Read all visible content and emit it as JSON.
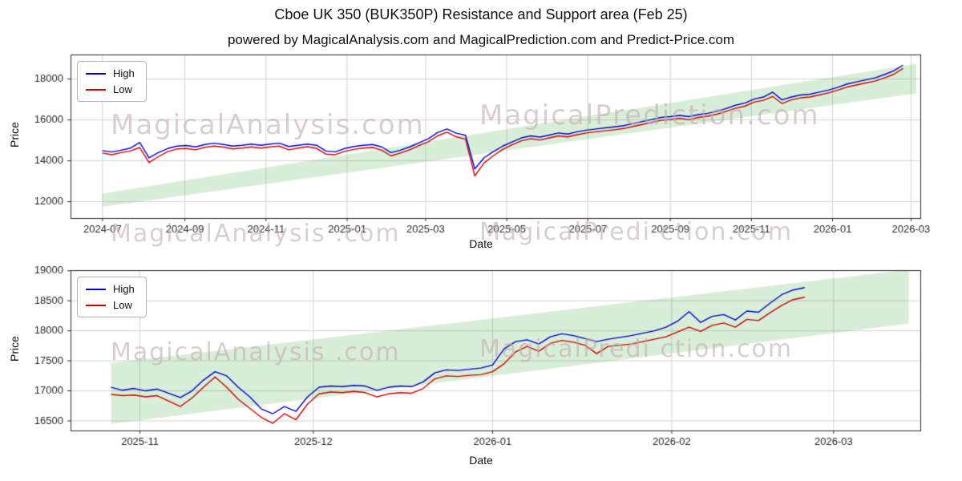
{
  "page": {
    "title": "Cboe UK 350 (BUK350P) Resistance and Support area (Feb 25)",
    "subtitle": "powered by MagicalAnalysis.com and MagicalPrediction.com and Predict-Price.com"
  },
  "watermarks": {
    "row1_left": "MagicalAnalysis.com",
    "row1_right": "MagicalPrediction.com",
    "row2_left": "MagicalAnalysis .com",
    "row2_right": "MagicalPredi ction.com",
    "row3_left": "MagicalAnalysis .com",
    "row3_right": "MagicalPredi ction.com"
  },
  "chart_data": [
    {
      "type": "line",
      "title": "",
      "xlabel": "Date",
      "ylabel": "Price",
      "grid": true,
      "legend_position": "upper left",
      "xlim": [
        "2024-06-07",
        "2026-03-08"
      ],
      "ylim": [
        11200,
        19200
      ],
      "yticks": [
        12000,
        14000,
        16000,
        18000
      ],
      "xticks": [
        {
          "date": "2024-07-01",
          "label": "2024-07"
        },
        {
          "date": "2024-09-01",
          "label": "2024-09"
        },
        {
          "date": "2024-11-01",
          "label": "2024-11"
        },
        {
          "date": "2025-01-01",
          "label": "2025-01"
        },
        {
          "date": "2025-03-01",
          "label": "2025-03"
        },
        {
          "date": "2025-05-01",
          "label": "2025-05"
        },
        {
          "date": "2025-07-01",
          "label": "2025-07"
        },
        {
          "date": "2025-09-01",
          "label": "2025-09"
        },
        {
          "date": "2025-11-01",
          "label": "2025-11"
        },
        {
          "date": "2026-01-01",
          "label": "2026-01"
        },
        {
          "date": "2026-03-01",
          "label": "2026-03"
        }
      ],
      "band": {
        "x": [
          "2024-07-01",
          "2026-03-05"
        ],
        "lower": [
          11750,
          17300
        ],
        "upper": [
          12400,
          18750
        ]
      },
      "band_color": "rgba(44,160,44,0.18)",
      "x": [
        "2024-07-01",
        "2024-07-08",
        "2024-07-15",
        "2024-07-22",
        "2024-07-29",
        "2024-08-05",
        "2024-08-12",
        "2024-08-19",
        "2024-08-26",
        "2024-09-02",
        "2024-09-09",
        "2024-09-16",
        "2024-09-23",
        "2024-09-30",
        "2024-10-07",
        "2024-10-14",
        "2024-10-21",
        "2024-10-28",
        "2024-11-04",
        "2024-11-11",
        "2024-11-18",
        "2024-11-25",
        "2024-12-02",
        "2024-12-09",
        "2024-12-16",
        "2024-12-23",
        "2024-12-30",
        "2025-01-06",
        "2025-01-13",
        "2025-01-20",
        "2025-01-27",
        "2025-02-03",
        "2025-02-10",
        "2025-02-17",
        "2025-02-24",
        "2025-03-03",
        "2025-03-10",
        "2025-03-17",
        "2025-03-24",
        "2025-03-31",
        "2025-04-07",
        "2025-04-14",
        "2025-04-21",
        "2025-04-28",
        "2025-05-05",
        "2025-05-12",
        "2025-05-19",
        "2025-05-26",
        "2025-06-02",
        "2025-06-09",
        "2025-06-16",
        "2025-06-23",
        "2025-06-30",
        "2025-07-07",
        "2025-07-14",
        "2025-07-21",
        "2025-07-28",
        "2025-08-04",
        "2025-08-11",
        "2025-08-18",
        "2025-08-25",
        "2025-09-01",
        "2025-09-08",
        "2025-09-15",
        "2025-09-22",
        "2025-09-29",
        "2025-10-06",
        "2025-10-13",
        "2025-10-20",
        "2025-10-27",
        "2025-11-03",
        "2025-11-10",
        "2025-11-17",
        "2025-11-24",
        "2025-12-01",
        "2025-12-08",
        "2025-12-15",
        "2025-12-22",
        "2025-12-29",
        "2026-01-05",
        "2026-01-12",
        "2026-01-19",
        "2026-01-26",
        "2026-02-02",
        "2026-02-09",
        "2026-02-16",
        "2026-02-23"
      ],
      "series": [
        {
          "name": "High",
          "color": "#0000cd",
          "values": [
            14500,
            14430,
            14520,
            14620,
            14900,
            14150,
            14400,
            14600,
            14720,
            14750,
            14680,
            14800,
            14860,
            14800,
            14720,
            14760,
            14820,
            14760,
            14820,
            14860,
            14700,
            14760,
            14820,
            14760,
            14480,
            14440,
            14600,
            14700,
            14760,
            14800,
            14680,
            14400,
            14520,
            14680,
            14880,
            15080,
            15380,
            15560,
            15350,
            15250,
            13600,
            14150,
            14450,
            14720,
            14920,
            15120,
            15220,
            15160,
            15260,
            15360,
            15310,
            15420,
            15500,
            15560,
            15610,
            15660,
            15720,
            15820,
            15920,
            16020,
            16120,
            16160,
            16220,
            16160,
            16260,
            16320,
            16420,
            16560,
            16720,
            16820,
            17020,
            17120,
            17360,
            16980,
            17120,
            17220,
            17260,
            17360,
            17460,
            17600,
            17760,
            17860,
            17960,
            18060,
            18220,
            18400,
            18680
          ]
        },
        {
          "name": "Low",
          "color": "#cd0000",
          "values": [
            14380,
            14300,
            14400,
            14480,
            14650,
            13920,
            14200,
            14450,
            14580,
            14600,
            14540,
            14660,
            14720,
            14670,
            14580,
            14620,
            14680,
            14620,
            14680,
            14720,
            14540,
            14620,
            14690,
            14610,
            14330,
            14300,
            14460,
            14560,
            14620,
            14660,
            14520,
            14240,
            14380,
            14540,
            14740,
            14930,
            15220,
            15400,
            15180,
            15060,
            13260,
            13900,
            14250,
            14560,
            14780,
            14980,
            15080,
            15020,
            15120,
            15220,
            15170,
            15280,
            15360,
            15420,
            15470,
            15520,
            15580,
            15680,
            15780,
            15880,
            15980,
            16020,
            16080,
            16010,
            16120,
            16180,
            16280,
            16420,
            16570,
            16670,
            16870,
            16960,
            17150,
            16800,
            16980,
            17080,
            17120,
            17220,
            17320,
            17460,
            17610,
            17710,
            17810,
            17900,
            18060,
            18230,
            18520
          ]
        }
      ]
    },
    {
      "type": "line",
      "title": "",
      "xlabel": "Date",
      "ylabel": "Price",
      "grid": true,
      "legend_position": "upper left",
      "xlim": [
        "2025-10-20",
        "2026-03-16"
      ],
      "ylim": [
        16340,
        19010
      ],
      "yticks": [
        16500,
        17000,
        17500,
        18000,
        18500,
        19000
      ],
      "xticks": [
        {
          "date": "2025-11-01",
          "label": "2025-11"
        },
        {
          "date": "2025-12-01",
          "label": "2025-12"
        },
        {
          "date": "2026-01-01",
          "label": "2026-01"
        },
        {
          "date": "2026-02-01",
          "label": "2026-02"
        },
        {
          "date": "2026-03-01",
          "label": "2026-03"
        }
      ],
      "band": {
        "x": [
          "2025-10-27",
          "2026-03-14"
        ],
        "lower": [
          16450,
          18120
        ],
        "upper": [
          17460,
          19020
        ]
      },
      "band_color": "rgba(44,160,44,0.18)",
      "x": [
        "2025-10-27",
        "2025-10-29",
        "2025-10-31",
        "2025-11-02",
        "2025-11-04",
        "2025-11-06",
        "2025-11-08",
        "2025-11-10",
        "2025-11-12",
        "2025-11-14",
        "2025-11-16",
        "2025-11-18",
        "2025-11-20",
        "2025-11-22",
        "2025-11-24",
        "2025-11-26",
        "2025-11-28",
        "2025-11-30",
        "2025-12-02",
        "2025-12-04",
        "2025-12-06",
        "2025-12-08",
        "2025-12-10",
        "2025-12-12",
        "2025-12-14",
        "2025-12-16",
        "2025-12-18",
        "2025-12-20",
        "2025-12-22",
        "2025-12-24",
        "2025-12-26",
        "2025-12-28",
        "2025-12-30",
        "2026-01-01",
        "2026-01-03",
        "2026-01-05",
        "2026-01-07",
        "2026-01-09",
        "2026-01-11",
        "2026-01-13",
        "2026-01-15",
        "2026-01-17",
        "2026-01-19",
        "2026-01-21",
        "2026-01-23",
        "2026-01-25",
        "2026-01-27",
        "2026-01-29",
        "2026-01-31",
        "2026-02-02",
        "2026-02-04",
        "2026-02-06",
        "2026-02-08",
        "2026-02-10",
        "2026-02-12",
        "2026-02-14",
        "2026-02-16",
        "2026-02-18",
        "2026-02-20",
        "2026-02-22",
        "2026-02-24"
      ],
      "series": [
        {
          "name": "High",
          "color": "#0000cd",
          "values": [
            17060,
            17010,
            17040,
            17000,
            17030,
            16960,
            16890,
            17000,
            17180,
            17320,
            17250,
            17060,
            16900,
            16700,
            16620,
            16740,
            16660,
            16900,
            17060,
            17080,
            17070,
            17090,
            17080,
            17010,
            17060,
            17080,
            17070,
            17150,
            17300,
            17350,
            17340,
            17360,
            17380,
            17430,
            17700,
            17820,
            17850,
            17780,
            17900,
            17950,
            17920,
            17870,
            17820,
            17860,
            17890,
            17920,
            17960,
            18000,
            18060,
            18160,
            18320,
            18140,
            18240,
            18270,
            18180,
            18330,
            18310,
            18460,
            18600,
            18680,
            18720
          ]
        },
        {
          "name": "Low",
          "color": "#cd0000",
          "values": [
            16940,
            16920,
            16930,
            16900,
            16920,
            16830,
            16740,
            16880,
            17060,
            17230,
            17060,
            16860,
            16710,
            16560,
            16460,
            16620,
            16520,
            16780,
            16950,
            16980,
            16970,
            16990,
            16970,
            16900,
            16950,
            16970,
            16960,
            17040,
            17200,
            17250,
            17240,
            17260,
            17270,
            17320,
            17450,
            17650,
            17740,
            17660,
            17790,
            17840,
            17810,
            17760,
            17620,
            17740,
            17760,
            17780,
            17820,
            17860,
            17900,
            17980,
            18060,
            17990,
            18090,
            18130,
            18060,
            18190,
            18170,
            18300,
            18420,
            18520,
            18560
          ]
        }
      ]
    }
  ]
}
